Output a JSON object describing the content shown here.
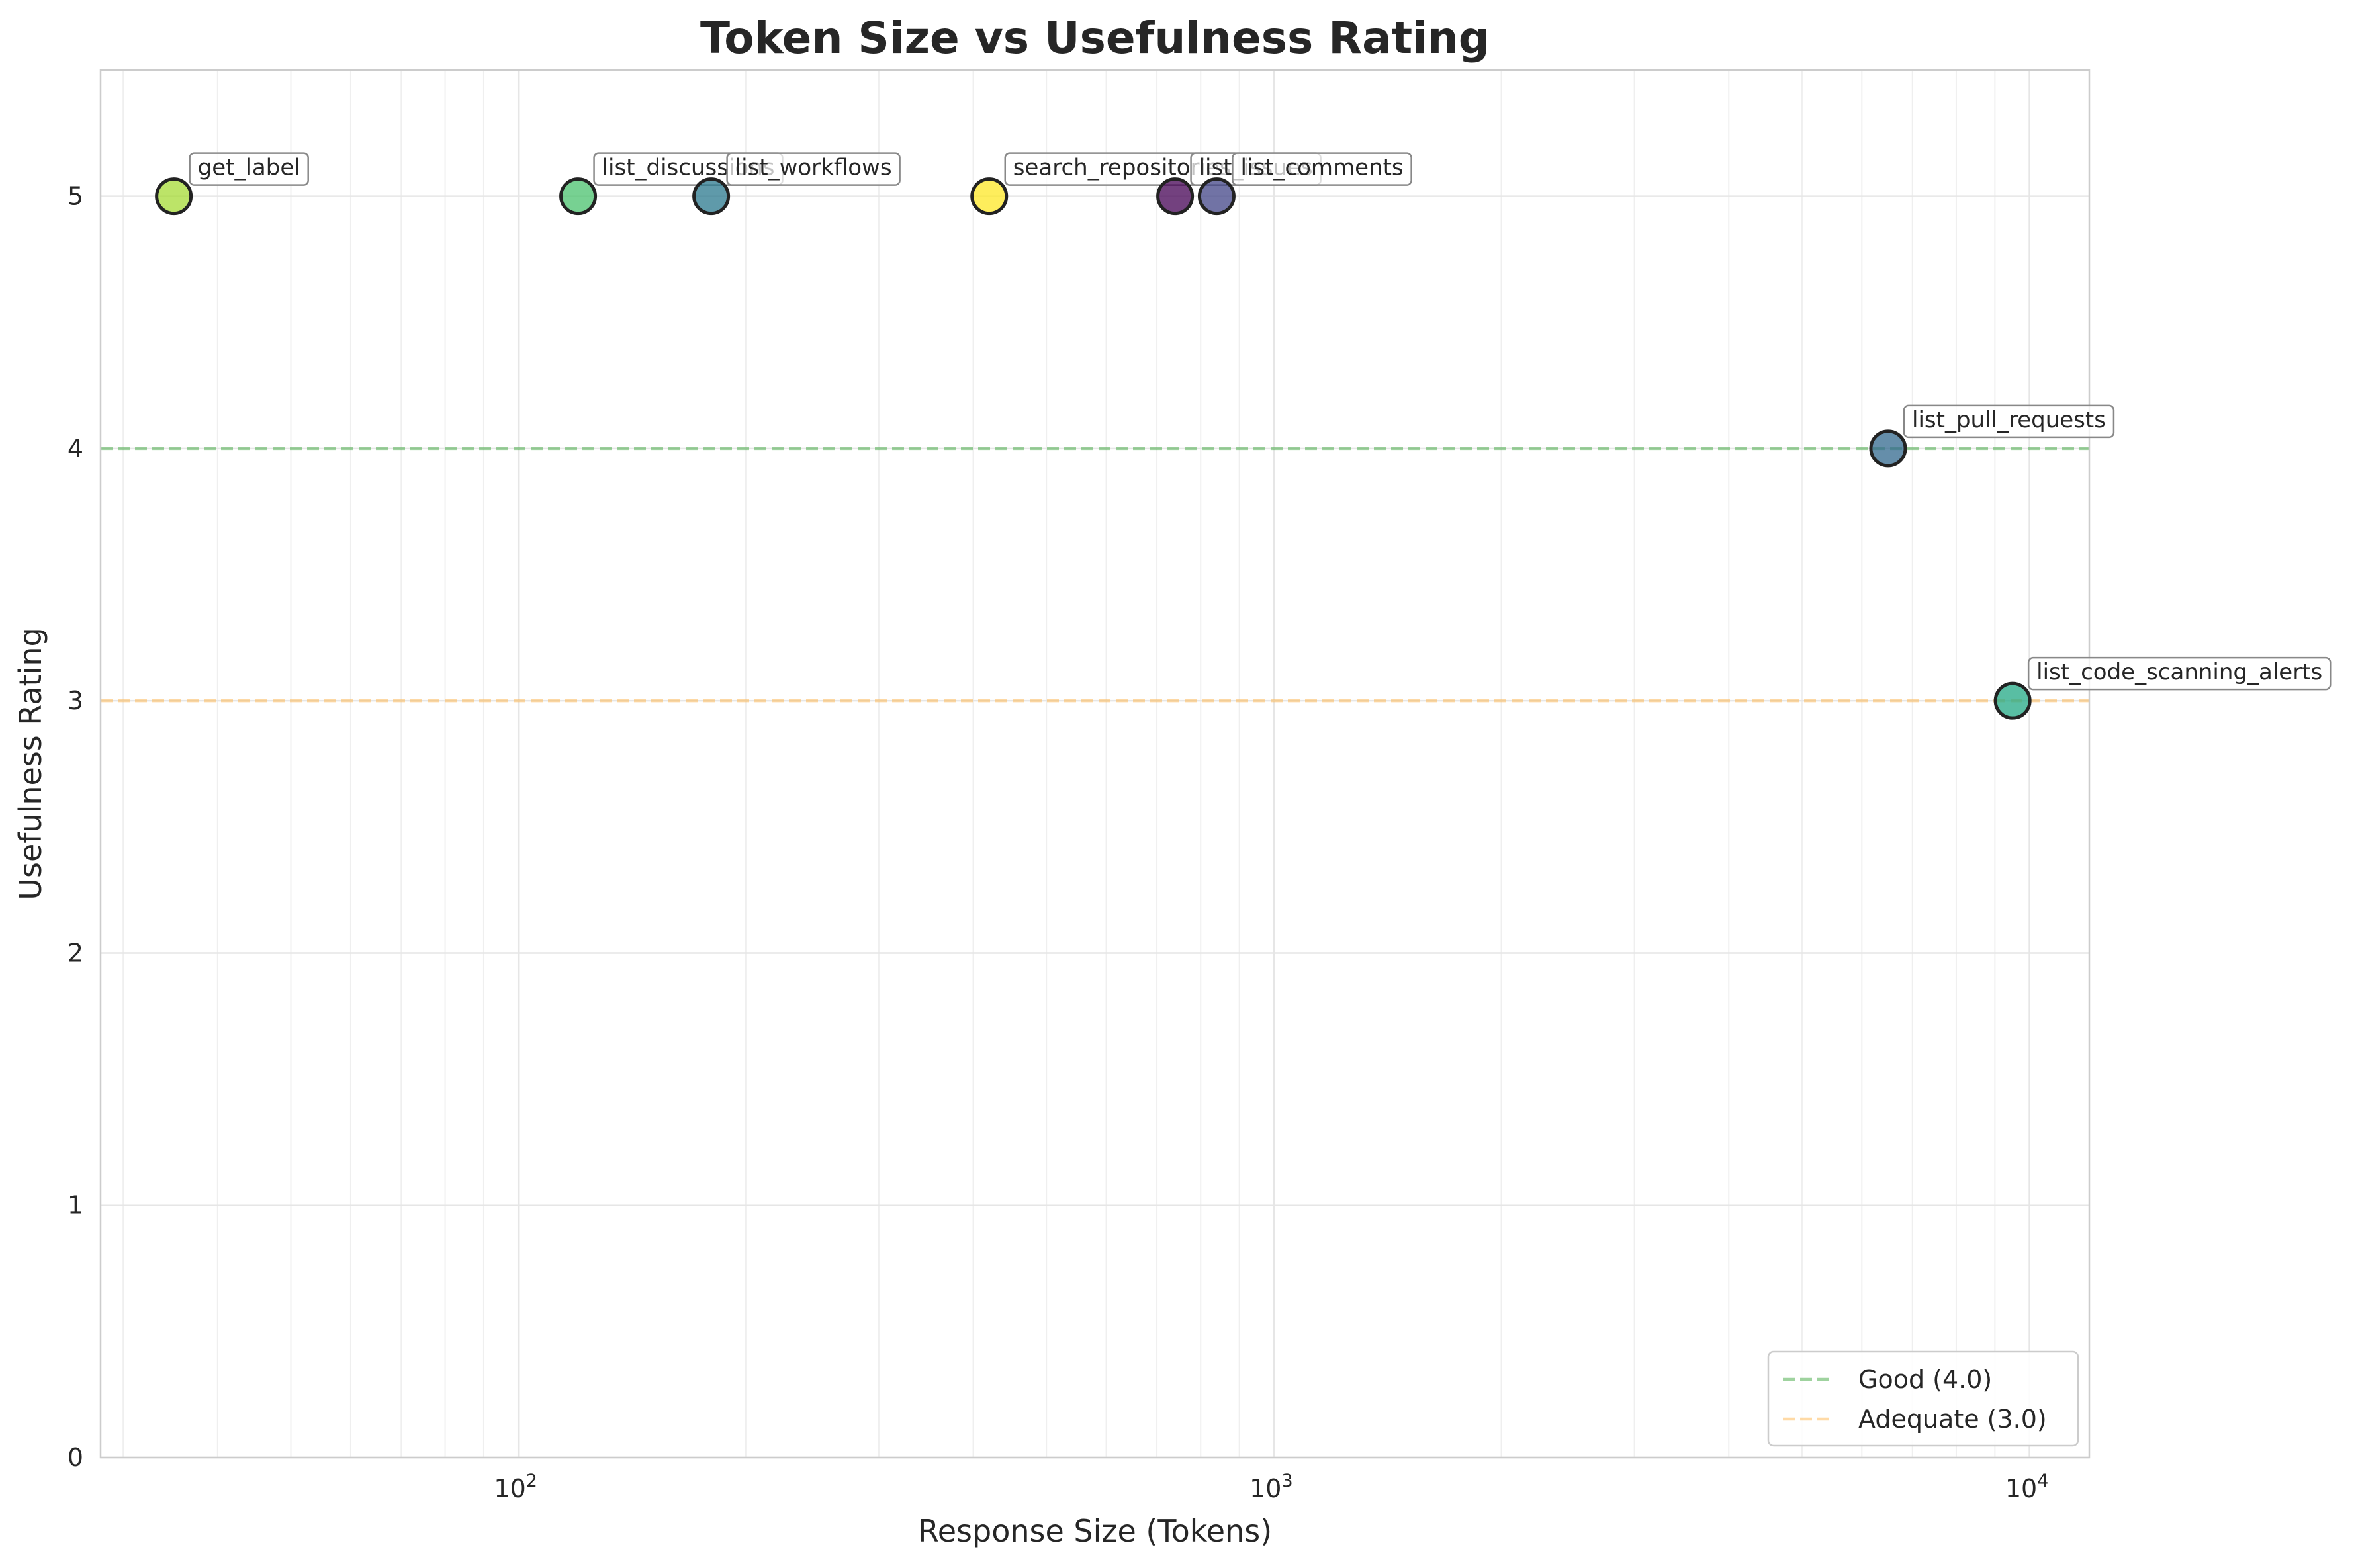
{
  "chart_data": {
    "type": "scatter",
    "title": "Token Size vs Usefulness Rating",
    "xlabel": "Response Size (Tokens)",
    "ylabel": "Usefulness Rating",
    "xscale": "log",
    "xlim": [
      28,
      12000
    ],
    "ylim": [
      0,
      5.5
    ],
    "grid": true,
    "x_tick_labels": [
      {
        "value": 100,
        "base": "10",
        "exp": "2"
      },
      {
        "value": 1000,
        "base": "10",
        "exp": "3"
      },
      {
        "value": 10000,
        "base": "10",
        "exp": "4"
      }
    ],
    "y_ticks": [
      0,
      1,
      2,
      3,
      4,
      5
    ],
    "points": [
      {
        "label": "get_label",
        "x": 35,
        "y": 5,
        "color": "#a5db36"
      },
      {
        "label": "list_discussions",
        "x": 120,
        "y": 5,
        "color": "#4ac16d"
      },
      {
        "label": "list_workflows",
        "x": 180,
        "y": 5,
        "color": "#2a788e"
      },
      {
        "label": "search_repositories",
        "x": 420,
        "y": 5,
        "color": "#fde725"
      },
      {
        "label": "list_issues",
        "x": 740,
        "y": 5,
        "color": "#440154"
      },
      {
        "label": "list_comments",
        "x": 840,
        "y": 5,
        "color": "#414487"
      },
      {
        "label": "list_pull_requests",
        "x": 6500,
        "y": 4,
        "color": "#31688e"
      },
      {
        "label": "list_code_scanning_alerts",
        "x": 9500,
        "y": 3,
        "color": "#22a884"
      }
    ],
    "reference_lines": [
      {
        "label": "Good (4.0)",
        "y": 4.0,
        "color": "#2ca02c"
      },
      {
        "label": "Adequate (3.0)",
        "y": 3.0,
        "color": "#ffaf3c"
      }
    ],
    "legend": {
      "placement": "lower-right"
    }
  }
}
